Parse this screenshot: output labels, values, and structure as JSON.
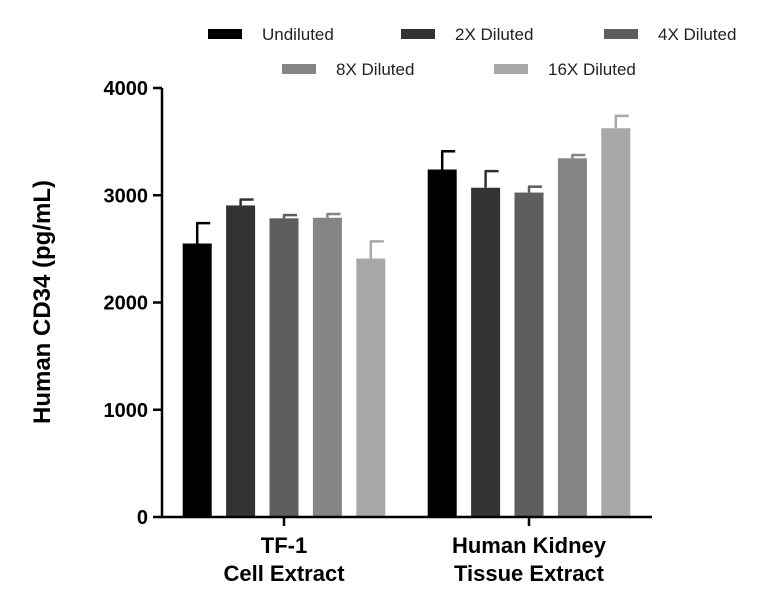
{
  "chart_data": {
    "type": "bar",
    "title": "",
    "xlabel": "",
    "ylabel": "Human CD34 (pg/mL)",
    "ylim": [
      0,
      4000
    ],
    "yticks": [
      "0",
      "1000",
      "2000",
      "3000",
      "4000"
    ],
    "categories": [
      [
        "TF-1",
        "Cell Extract"
      ],
      [
        "Human Kidney",
        "Tissue Extract"
      ]
    ],
    "series": [
      {
        "name": "Undiluted",
        "color": "#000000",
        "values": [
          2550,
          3240
        ],
        "errors": [
          190,
          170
        ]
      },
      {
        "name": "2X Diluted",
        "color": "#333333",
        "values": [
          2905,
          3070
        ],
        "errors": [
          55,
          155
        ]
      },
      {
        "name": "4X Diluted",
        "color": "#5e5e5e",
        "values": [
          2785,
          3025
        ],
        "errors": [
          30,
          55
        ]
      },
      {
        "name": "8X Diluted",
        "color": "#858585",
        "values": [
          2790,
          3345
        ],
        "errors": [
          35,
          30
        ]
      },
      {
        "name": "16X Diluted",
        "color": "#a8a8a8",
        "values": [
          2410,
          3625
        ],
        "errors": [
          160,
          115
        ]
      }
    ],
    "legend": "top"
  }
}
